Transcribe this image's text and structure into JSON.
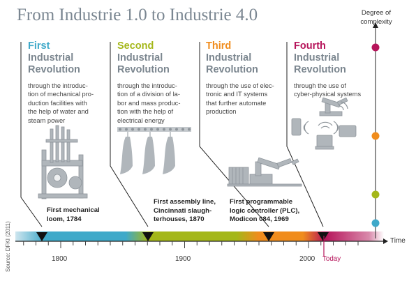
{
  "title": "From Industrie 1.0 to Industrie 4.0",
  "complexity_label": [
    "Degree of",
    "complexity"
  ],
  "revolutions": [
    {
      "number": "First",
      "label": [
        "Industrial",
        "Revolution"
      ],
      "color": "#3fa9c9",
      "description": [
        "through the introduc-",
        "tion of mechanical pro-",
        "duction facilities with",
        "the help of water and",
        "steam power"
      ],
      "event": [
        "First mechanical",
        "loom, 1784"
      ]
    },
    {
      "number": "Second",
      "label": [
        "Industrial",
        "Revolution"
      ],
      "color": "#a4b719",
      "description": [
        "through the introduc-",
        "tion of a division of la-",
        "bor and mass produc-",
        "tion with the help of",
        "electrical energy"
      ],
      "event": [
        "First assembly line,",
        "Cincinnati slaugh-",
        "terhouses, 1870"
      ]
    },
    {
      "number": "Third",
      "label": [
        "Industrial",
        "Revolution"
      ],
      "color": "#f08c1c",
      "description": [
        "through the use of elec-",
        "tronic and IT systems",
        "that further automate",
        "production"
      ],
      "event": [
        "First programmable",
        "logic controller (PLC),",
        "Modicon 084, 1969"
      ]
    },
    {
      "number": "Fourth",
      "label": [
        "Industrial",
        "Revolution"
      ],
      "color": "#b6145a",
      "description": [
        "through the use of",
        "cyber-physical systems"
      ],
      "event": []
    }
  ],
  "axis": {
    "ticks": [
      "1800",
      "1900",
      "2000"
    ],
    "today_label": "Today",
    "time_label": "Time"
  },
  "source": "Source: DFKI (2011)",
  "colors": {
    "title": "#7a8691",
    "label": "#7b868f",
    "first": "#3fa9c9",
    "second": "#a4b719",
    "third": "#f08c1c",
    "fourth": "#b6145a"
  }
}
